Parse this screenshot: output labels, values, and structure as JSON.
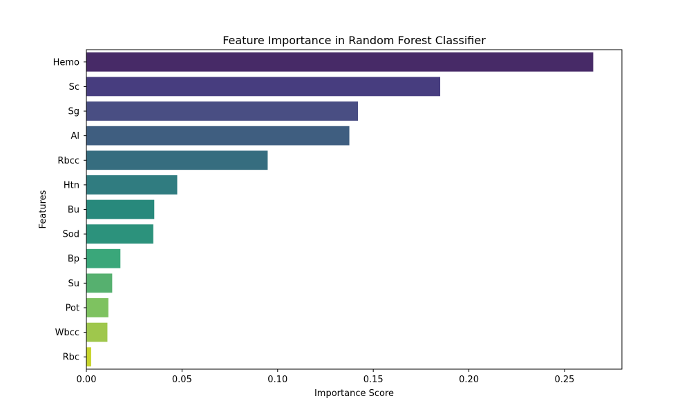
{
  "chart_data": {
    "type": "bar",
    "orientation": "horizontal",
    "title": "Feature Importance in Random Forest Classifier",
    "xlabel": "Importance Score",
    "ylabel": "Features",
    "xlim": [
      0,
      0.28
    ],
    "x_ticks": [
      0.0,
      0.05,
      0.1,
      0.15,
      0.2,
      0.25
    ],
    "x_tick_labels": [
      "0.00",
      "0.05",
      "0.10",
      "0.15",
      "0.20",
      "0.25"
    ],
    "grid": false,
    "legend": "none",
    "categories": [
      "Hemo",
      "Sc",
      "Sg",
      "Al",
      "Rbcc",
      "Htn",
      "Bu",
      "Sod",
      "Bp",
      "Su",
      "Pot",
      "Wbcc",
      "Rbc"
    ],
    "values": [
      0.265,
      0.185,
      0.142,
      0.1375,
      0.0948,
      0.0475,
      0.0355,
      0.035,
      0.0178,
      0.0135,
      0.0115,
      0.011,
      0.0025
    ],
    "colors": [
      "#472a67",
      "#473d7f",
      "#494e83",
      "#3f5e80",
      "#366d7f",
      "#307c80",
      "#28897c",
      "#2c927c",
      "#3aa77a",
      "#56b06f",
      "#7ec260",
      "#9fc74c",
      "#c7d42a"
    ]
  }
}
